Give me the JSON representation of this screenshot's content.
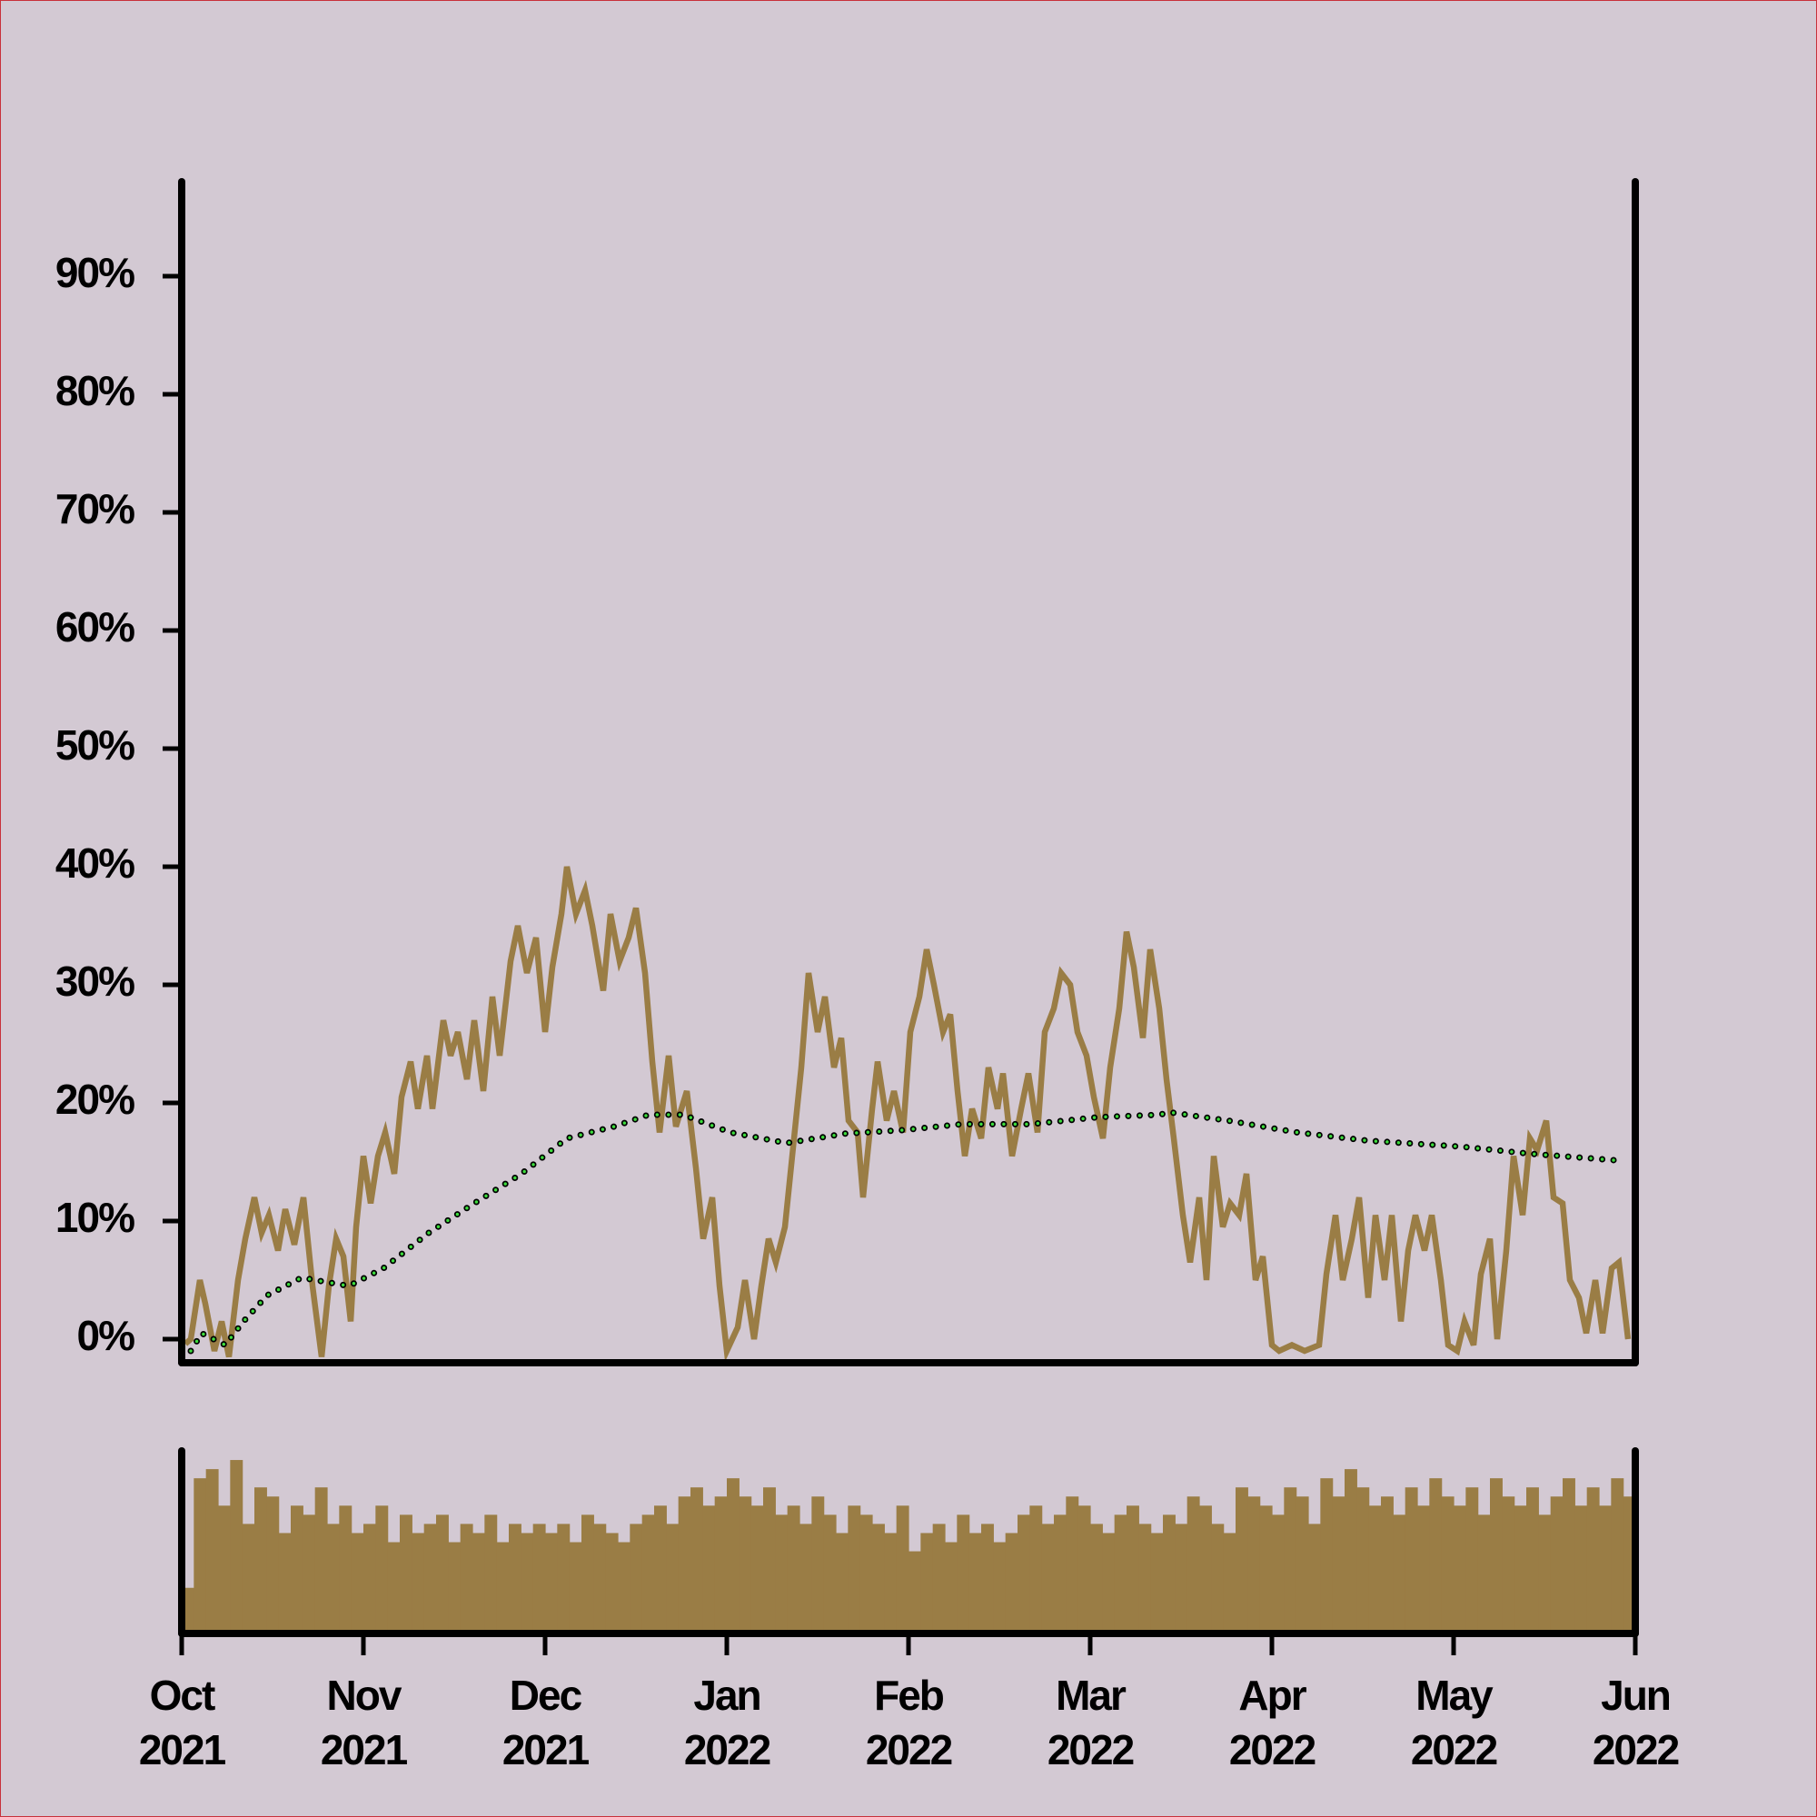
{
  "chart_data": [
    {
      "type": "line",
      "xlim": [
        0,
        8
      ],
      "xticks": [
        {
          "value": 0,
          "label": "Oct 2021"
        },
        {
          "value": 1,
          "label": "Nov 2021"
        },
        {
          "value": 2,
          "label": "Dec 2021"
        },
        {
          "value": 3,
          "label": "Jan 2022"
        },
        {
          "value": 4,
          "label": "Feb 2022"
        },
        {
          "value": 5,
          "label": "Mar 2022"
        },
        {
          "value": 6,
          "label": "Apr 2022"
        },
        {
          "value": 7,
          "label": "May 2022"
        },
        {
          "value": 8,
          "label": "Jun 2022"
        }
      ],
      "ylim": [
        -2,
        98
      ],
      "yticks": [
        {
          "value": 0,
          "label": "0%"
        },
        {
          "value": 10,
          "label": "10%"
        },
        {
          "value": 20,
          "label": "20%"
        },
        {
          "value": 30,
          "label": "30%"
        },
        {
          "value": 40,
          "label": "40%"
        },
        {
          "value": 50,
          "label": "50%"
        },
        {
          "value": 60,
          "label": "60%"
        },
        {
          "value": 70,
          "label": "70%"
        },
        {
          "value": 80,
          "label": "80%"
        },
        {
          "value": 90,
          "label": "90%"
        }
      ],
      "series": [
        {
          "color": "#9a7d45",
          "x": [
            0.02,
            0.05,
            0.1,
            0.13,
            0.18,
            0.22,
            0.26,
            0.31,
            0.35,
            0.4,
            0.44,
            0.48,
            0.53,
            0.57,
            0.62,
            0.67,
            0.72,
            0.77,
            0.81,
            0.85,
            0.89,
            0.93,
            0.96,
            1.0,
            1.04,
            1.08,
            1.12,
            1.17,
            1.21,
            1.26,
            1.3,
            1.35,
            1.38,
            1.44,
            1.48,
            1.52,
            1.57,
            1.61,
            1.66,
            1.71,
            1.75,
            1.81,
            1.85,
            1.9,
            1.95,
            2.0,
            2.04,
            2.09,
            2.12,
            2.17,
            2.22,
            2.26,
            2.32,
            2.36,
            2.41,
            2.46,
            2.5,
            2.55,
            2.59,
            2.63,
            2.68,
            2.72,
            2.78,
            2.83,
            2.87,
            2.92,
            2.96,
            3.0,
            3.06,
            3.1,
            3.15,
            3.19,
            3.23,
            3.27,
            3.32,
            3.36,
            3.41,
            3.45,
            3.5,
            3.54,
            3.59,
            3.63,
            3.67,
            3.72,
            3.75,
            3.8,
            3.83,
            3.88,
            3.92,
            3.97,
            4.01,
            4.06,
            4.1,
            4.14,
            4.19,
            4.23,
            4.27,
            4.31,
            4.35,
            4.4,
            4.44,
            4.49,
            4.52,
            4.57,
            4.62,
            4.66,
            4.71,
            4.75,
            4.8,
            4.84,
            4.89,
            4.93,
            4.98,
            5.02,
            5.07,
            5.11,
            5.16,
            5.2,
            5.24,
            5.29,
            5.33,
            5.38,
            5.42,
            5.46,
            5.51,
            5.55,
            5.6,
            5.64,
            5.68,
            5.73,
            5.77,
            5.82,
            5.86,
            5.91,
            5.95,
            6.0,
            6.04,
            6.11,
            6.18,
            6.26,
            6.3,
            6.35,
            6.39,
            6.44,
            6.48,
            6.53,
            6.57,
            6.62,
            6.66,
            6.71,
            6.75,
            6.79,
            6.84,
            6.88,
            6.93,
            6.97,
            7.02,
            7.06,
            7.11,
            7.15,
            7.2,
            7.24,
            7.29,
            7.33,
            7.38,
            7.42,
            7.46,
            7.51,
            7.55,
            7.6,
            7.64,
            7.69,
            7.73,
            7.78,
            7.82,
            7.87,
            7.91,
            7.96
          ],
          "values": [
            -0.4,
            0,
            5,
            3,
            -1,
            1.5,
            -1.5,
            5,
            8.5,
            12,
            9,
            10.5,
            7.5,
            11,
            8,
            12,
            4.5,
            -1.5,
            4.5,
            8.5,
            7,
            1.5,
            9.5,
            15.5,
            11.5,
            15.5,
            17.5,
            14,
            20.5,
            23.5,
            19.5,
            24,
            19.5,
            27,
            24,
            26,
            22,
            27,
            21,
            29,
            24,
            32,
            35,
            31,
            34,
            26,
            31.5,
            36,
            40,
            36,
            38,
            35,
            29.5,
            36,
            32,
            34,
            36.5,
            31,
            23.5,
            17.5,
            24,
            18,
            21,
            14.5,
            8.5,
            12,
            4.5,
            -1,
            1,
            5,
            0,
            4.5,
            8.5,
            6.5,
            9.5,
            15.5,
            23,
            31,
            26,
            29,
            23,
            25.5,
            18.5,
            17.5,
            12,
            19.5,
            23.5,
            18.5,
            21,
            17.5,
            26,
            29,
            33,
            30,
            26,
            27.5,
            21,
            15.5,
            19.5,
            17,
            23,
            19.5,
            22.5,
            15.5,
            19.5,
            22.5,
            17.5,
            26,
            28,
            31,
            30,
            26,
            24,
            20.5,
            17,
            23,
            28,
            34.5,
            31.5,
            25.5,
            33,
            28,
            22,
            17,
            10.5,
            6.5,
            12,
            5,
            15.5,
            9.5,
            11.5,
            10.5,
            14,
            5,
            7,
            -0.5,
            -1,
            -0.5,
            -1,
            -0.5,
            5.5,
            10.5,
            5,
            8.5,
            12,
            3.5,
            10.5,
            5,
            10.5,
            1.5,
            7.5,
            10.5,
            7.5,
            10.5,
            5,
            -0.5,
            -1,
            1.5,
            -0.5,
            5.5,
            8.5,
            0,
            7.5,
            15.5,
            10.5,
            17,
            16,
            18.5,
            12,
            11.5,
            5,
            3.5,
            0.5,
            5,
            0.5,
            6,
            6.5,
            0
          ]
        },
        {
          "color": "#3ddc3d",
          "x": [
            0.05,
            0.11,
            0.24,
            0.34,
            0.47,
            0.66,
            0.92,
            1.11,
            1.36,
            1.61,
            1.87,
            2.12,
            2.38,
            2.57,
            2.76,
            3.02,
            3.33,
            3.65,
            3.97,
            4.29,
            4.67,
            5.05,
            5.38,
            5.44,
            5.76,
            6.14,
            6.53,
            7.04,
            7.42,
            7.93
          ],
          "values": [
            -1,
            0.5,
            -0.5,
            1.5,
            3.7,
            5.2,
            4.5,
            6,
            9,
            11.5,
            14,
            17,
            18,
            19,
            19,
            17.5,
            16.6,
            17.4,
            17.7,
            18.2,
            18.2,
            18.8,
            19,
            19.2,
            18.5,
            17.5,
            16.8,
            16.3,
            15.7,
            15.1
          ]
        }
      ]
    },
    {
      "type": "bar",
      "color": "#9a7d45",
      "ylim": [
        0,
        100
      ],
      "categories": [
        null,
        null,
        null,
        null,
        null,
        null,
        null,
        null,
        null,
        null,
        null,
        null,
        null,
        null,
        null,
        null,
        null,
        null,
        null,
        null,
        null,
        null,
        null,
        null,
        null,
        null,
        null,
        null,
        null,
        null,
        null,
        null,
        null,
        null,
        null,
        null,
        null,
        null,
        null,
        null,
        null,
        null,
        null,
        null,
        null,
        null,
        null,
        null,
        null,
        null,
        null,
        null,
        null,
        null,
        null,
        null,
        null,
        null,
        null,
        null,
        null,
        null,
        null,
        null,
        null,
        null,
        null,
        null,
        null,
        null,
        null,
        null,
        null,
        null,
        null,
        null,
        null,
        null,
        null,
        null,
        null,
        null,
        null,
        null,
        null,
        null,
        null,
        null,
        null,
        null,
        null,
        null,
        null,
        null,
        null,
        null,
        null,
        null,
        null,
        null,
        null,
        null,
        null,
        null,
        null,
        null,
        null,
        null,
        null,
        null,
        null,
        null,
        null,
        null,
        null,
        null,
        null,
        null,
        null,
        null
      ],
      "values": [
        25,
        85,
        90,
        70,
        95,
        60,
        80,
        75,
        55,
        70,
        65,
        80,
        60,
        70,
        55,
        60,
        70,
        50,
        65,
        55,
        60,
        65,
        50,
        60,
        55,
        65,
        50,
        60,
        55,
        60,
        55,
        60,
        50,
        65,
        60,
        55,
        50,
        60,
        65,
        70,
        60,
        75,
        80,
        70,
        75,
        85,
        75,
        70,
        80,
        65,
        70,
        60,
        75,
        65,
        55,
        70,
        65,
        60,
        55,
        70,
        45,
        55,
        60,
        50,
        65,
        55,
        60,
        50,
        55,
        65,
        70,
        60,
        65,
        75,
        70,
        60,
        55,
        65,
        70,
        60,
        55,
        65,
        60,
        75,
        70,
        60,
        55,
        80,
        75,
        70,
        65,
        80,
        75,
        60,
        85,
        75,
        90,
        80,
        70,
        75,
        65,
        80,
        70,
        85,
        75,
        70,
        80,
        65,
        85,
        75,
        70,
        80,
        65,
        75,
        85,
        70,
        80,
        70,
        85,
        75
      ]
    }
  ]
}
